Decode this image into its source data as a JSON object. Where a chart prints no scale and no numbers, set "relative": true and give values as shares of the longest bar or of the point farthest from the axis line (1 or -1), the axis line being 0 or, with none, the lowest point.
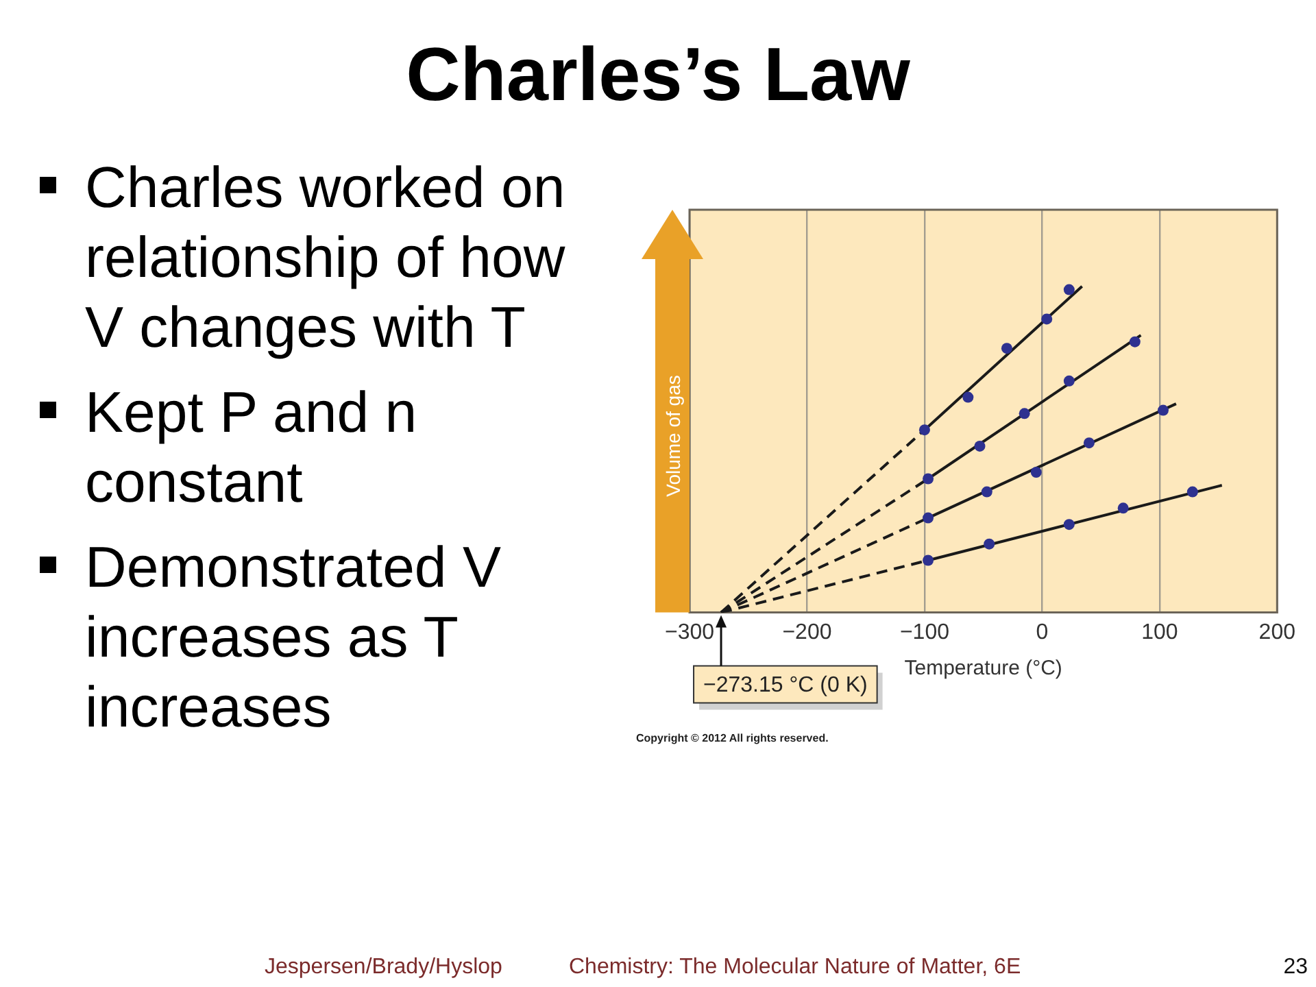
{
  "chart_data": {
    "type": "scatter",
    "title": "Charles’s Law",
    "xlabel": "Temperature (°C)",
    "ylabel": "Volume of gas",
    "relative": true,
    "xlim": [
      -300,
      200
    ],
    "xticks": [
      {
        "value": -300,
        "label": "−300"
      },
      {
        "value": -200,
        "label": "−200"
      },
      {
        "value": -100,
        "label": "−100"
      },
      0,
      100,
      200
    ],
    "grid": "x",
    "series": [
      {
        "type": "line",
        "color": "#1a1a1a",
        "line_style": "dashed",
        "marker": "none",
        "x": [
          -273.15,
          -100
        ],
        "values": [
          0,
          0.56
        ]
      },
      {
        "type": "line",
        "color": "#1a1a1a",
        "line_style": "solid",
        "marker": "none",
        "x": [
          -100,
          34
        ],
        "values": [
          0.56,
          1
        ]
      },
      {
        "type": "scatter",
        "color": "#2e3190",
        "marker": "circle",
        "x": [
          -100,
          -63,
          -30,
          4,
          23
        ],
        "values": [
          0.56,
          0.66,
          0.81,
          0.9,
          0.99
        ]
      },
      {
        "type": "line",
        "color": "#1a1a1a",
        "line_style": "dashed",
        "marker": "none",
        "x": [
          -273.15,
          -97
        ],
        "values": [
          0,
          0.41
        ]
      },
      {
        "type": "line",
        "color": "#1a1a1a",
        "line_style": "solid",
        "marker": "none",
        "x": [
          -97,
          84
        ],
        "values": [
          0.41,
          0.85
        ]
      },
      {
        "type": "scatter",
        "color": "#2e3190",
        "marker": "circle",
        "x": [
          -97,
          -53,
          -15,
          23,
          79
        ],
        "values": [
          0.41,
          0.51,
          0.61,
          0.71,
          0.83
        ]
      },
      {
        "type": "line",
        "color": "#1a1a1a",
        "line_style": "dashed",
        "marker": "none",
        "x": [
          -273.15,
          -97
        ],
        "values": [
          0,
          0.29
        ]
      },
      {
        "type": "line",
        "color": "#1a1a1a",
        "line_style": "solid",
        "marker": "none",
        "x": [
          -97,
          114
        ],
        "values": [
          0.29,
          0.64
        ]
      },
      {
        "type": "scatter",
        "color": "#2e3190",
        "marker": "circle",
        "x": [
          -97,
          -47,
          -5,
          40,
          103
        ],
        "values": [
          0.29,
          0.37,
          0.43,
          0.52,
          0.62
        ]
      },
      {
        "type": "line",
        "color": "#1a1a1a",
        "line_style": "dashed",
        "marker": "none",
        "x": [
          -273.15,
          -97
        ],
        "values": [
          0,
          0.16
        ]
      },
      {
        "type": "line",
        "color": "#1a1a1a",
        "line_style": "solid",
        "marker": "none",
        "x": [
          -97,
          153
        ],
        "values": [
          0.16,
          0.39
        ]
      },
      {
        "type": "scatter",
        "color": "#2e3190",
        "marker": "circle",
        "x": [
          -97,
          -45,
          23,
          69,
          128
        ],
        "values": [
          0.16,
          0.21,
          0.27,
          0.32,
          0.37
        ]
      }
    ],
    "annotations": [
      "Charles worked on relationship of how V changes with T",
      "Kept P and n constant",
      "Demonstrated V increases as T increases",
      {
        "text": "−273.15 °C (0 K)",
        "x": -273.15,
        "y": 0
      },
      "Copyright © 2012 All rights reserved.",
      "Jespersen/Brady/Hyslop",
      "Chemistry: The Molecular Nature of Matter, 6E",
      "23"
    ]
  }
}
